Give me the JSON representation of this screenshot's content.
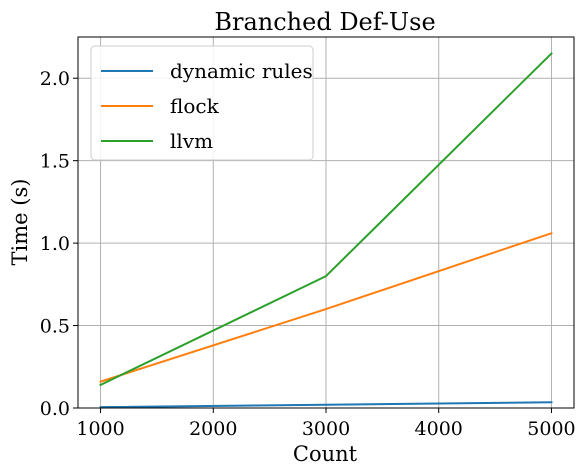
{
  "chart_data": {
    "type": "line",
    "title": "Branched Def-Use",
    "xlabel": "Count",
    "ylabel": "Time (s)",
    "x": [
      1000,
      3000,
      5000
    ],
    "xlim": [
      800,
      5200
    ],
    "ylim": [
      0,
      2.25
    ],
    "xticks": [
      1000,
      2000,
      3000,
      4000,
      5000
    ],
    "xtick_labels": [
      "1000",
      "2000",
      "3000",
      "4000",
      "5000"
    ],
    "yticks": [
      0,
      0.5,
      1.0,
      1.5,
      2.0
    ],
    "ytick_labels": [
      "0.0",
      "0.5",
      "1.0",
      "1.5",
      "2.0"
    ],
    "grid": true,
    "legend_position": "top-left",
    "series": [
      {
        "name": "dynamic rules",
        "color": "#1f77b4",
        "values": [
          0.005,
          0.02,
          0.035
        ]
      },
      {
        "name": "flock",
        "color": "#ff7f0e",
        "values": [
          0.16,
          0.6,
          1.06
        ]
      },
      {
        "name": "llvm",
        "color": "#2ca02c",
        "values": [
          0.14,
          0.8,
          2.15
        ]
      }
    ]
  }
}
